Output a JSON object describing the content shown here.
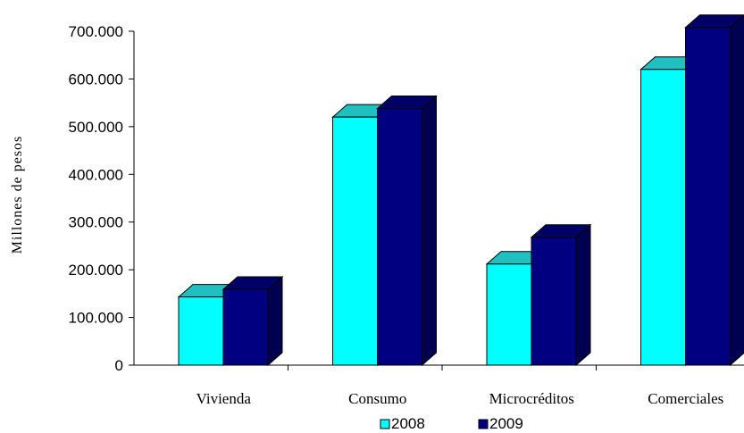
{
  "chart_data": {
    "type": "bar",
    "style": "3d-clustered-column",
    "title": "",
    "ylabel": "Millones de pesos",
    "xlabel": "",
    "categories": [
      "Vivienda",
      "Consumo",
      "Microcréditos",
      "Comerciales"
    ],
    "series": [
      {
        "name": "2008",
        "color": "#00FFFF",
        "values": [
          143000,
          520000,
          212000,
          620000
        ]
      },
      {
        "name": "2009",
        "color": "#000080",
        "values": [
          159000,
          538000,
          268000,
          708000
        ]
      }
    ],
    "ylim": [
      0,
      700000
    ],
    "yticks": [
      0,
      100000,
      200000,
      300000,
      400000,
      500000,
      600000,
      700000
    ],
    "ytick_labels": [
      "0",
      "100.000",
      "200.000",
      "300.000",
      "400.000",
      "500.000",
      "600.000",
      "700.000"
    ],
    "grid": false,
    "legend_position": "bottom"
  }
}
